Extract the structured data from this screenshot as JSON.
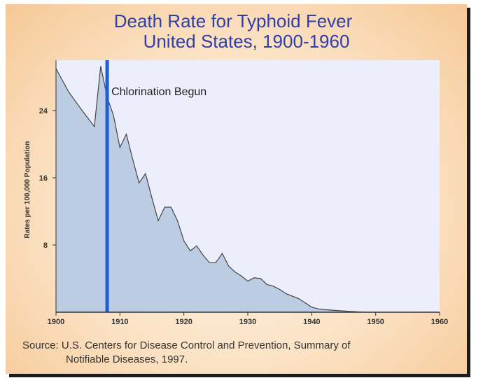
{
  "slide": {
    "title_line1": "Death Rate for Typhoid Fever",
    "title_line2": "United States, 1900-1960",
    "source_line1": "Source: U.S. Centers for Disease Control and Prevention, Summary of",
    "source_line2": "Notifiable Diseases, 1997."
  },
  "colors": {
    "title": "#2f3fa8",
    "plot_bg": "#eceefb",
    "area_fill": "#bccde3",
    "area_stroke": "#444444",
    "marker": "#1f5fd3"
  },
  "chart_data": {
    "type": "area",
    "title": "Death Rate for Typhoid Fever United States, 1900-1960",
    "xlabel": "",
    "ylabel": "Rates per 100,000 Population",
    "xlim": [
      1900,
      1960
    ],
    "ylim": [
      0,
      30
    ],
    "xticks": [
      1900,
      1910,
      1920,
      1930,
      1940,
      1950,
      1960
    ],
    "yticks": [
      8,
      16,
      24
    ],
    "grid": false,
    "series": [
      {
        "name": "Typhoid fever death rate",
        "x": [
          1900,
          1902,
          1904,
          1906,
          1907,
          1908,
          1909,
          1910,
          1911,
          1912,
          1913,
          1914,
          1915,
          1916,
          1917,
          1918,
          1919,
          1920,
          1921,
          1922,
          1923,
          1924,
          1925,
          1926,
          1927,
          1928,
          1929,
          1930,
          1931,
          1932,
          1933,
          1934,
          1935,
          1936,
          1937,
          1938,
          1939,
          1940,
          1941,
          1942,
          1944,
          1946,
          1948
        ],
        "values": [
          29,
          26.2,
          24.1,
          22.1,
          29.3,
          25.6,
          23.4,
          19.6,
          21.2,
          18.2,
          15.4,
          16.5,
          13.6,
          10.9,
          12.5,
          12.5,
          10.9,
          8.5,
          7.3,
          7.9,
          6.8,
          5.9,
          5.9,
          7.0,
          5.5,
          4.8,
          4.3,
          3.7,
          4.1,
          4.0,
          3.3,
          3.1,
          2.7,
          2.2,
          1.9,
          1.6,
          1.1,
          0.6,
          0.4,
          0.3,
          0.2,
          0.1,
          0
        ]
      }
    ],
    "annotations": [
      {
        "label": "Chlorination Begun",
        "x": 1908
      }
    ]
  }
}
